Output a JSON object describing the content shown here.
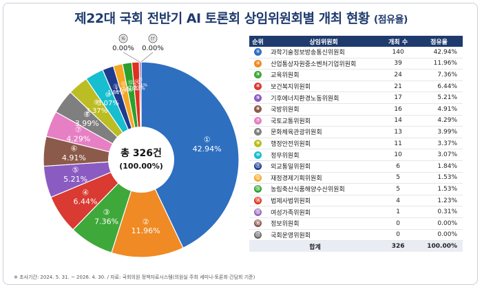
{
  "title_main": "제22대 국회 전반기 AI 토론회 상임위원회별 개최 현황",
  "title_sub": "(점유율)",
  "center_label": {
    "line1": "총 326건",
    "line2": "(100.00%)"
  },
  "table": {
    "headers": [
      "순위",
      "상임위원회",
      "개최 수",
      "점유율"
    ],
    "total": {
      "label": "합계",
      "count": "326",
      "pct": "100.00%"
    }
  },
  "footnote": "※ 조사기간: 2024. 5. 31. ~ 2026. 4. 30.   /   자료: 국회의원 정책자료시스템(의원실 주최 세미나·토론회·간담회 기준)",
  "chart_data": {
    "type": "pie",
    "title": "제22대 국회 전반기 AI 토론회 상임위원회별 개최 현황 (점유율)",
    "total": 326,
    "slices": [
      {
        "rank": "①",
        "name": "과학기술정보방송통신위원회",
        "count": 140,
        "pct": "42.94%",
        "color": "#2e6fc0"
      },
      {
        "rank": "②",
        "name": "산업통상자원중소벤처기업위원회",
        "count": 39,
        "pct": "11.96%",
        "color": "#f08a24"
      },
      {
        "rank": "③",
        "name": "교육위원회",
        "count": 24,
        "pct": "7.36%",
        "color": "#3fa83a"
      },
      {
        "rank": "④",
        "name": "보건복지위원회",
        "count": 21,
        "pct": "6.44%",
        "color": "#d93a32"
      },
      {
        "rank": "⑤",
        "name": "기후에너지환경노동위원회",
        "count": 17,
        "pct": "5.21%",
        "color": "#8a5cc2"
      },
      {
        "rank": "⑥",
        "name": "국방위원회",
        "count": 16,
        "pct": "4.91%",
        "color": "#8c5a4a"
      },
      {
        "rank": "⑦",
        "name": "국토교통위원회",
        "count": 14,
        "pct": "4.29%",
        "color": "#e77fc4"
      },
      {
        "rank": "⑧",
        "name": "문화체육관광위원회",
        "count": 13,
        "pct": "3.99%",
        "color": "#7f7f7f"
      },
      {
        "rank": "⑨",
        "name": "행정안전위원회",
        "count": 11,
        "pct": "3.37%",
        "color": "#bcbd22"
      },
      {
        "rank": "⑩",
        "name": "정무위원회",
        "count": 10,
        "pct": "3.07%",
        "color": "#17becf"
      },
      {
        "rank": "⑪",
        "name": "외교통일위원회",
        "count": 6,
        "pct": "1.84%",
        "color": "#1f3b8e"
      },
      {
        "rank": "⑫",
        "name": "재정경제기획위원회",
        "count": 5,
        "pct": "1.53%",
        "color": "#f5a623"
      },
      {
        "rank": "⑬",
        "name": "농림축산식품해양수산위원회",
        "count": 5,
        "pct": "1.53%",
        "color": "#2ca02c"
      },
      {
        "rank": "⑭",
        "name": "법제사법위원회",
        "count": 4,
        "pct": "1.23%",
        "color": "#e0301e"
      },
      {
        "rank": "⑮",
        "name": "여성가족위원회",
        "count": 1,
        "pct": "0.31%",
        "color": "#9467bd"
      },
      {
        "rank": "⑯",
        "name": "정보위원회",
        "count": 0,
        "pct": "0.00%",
        "color": "#8c564b"
      },
      {
        "rank": "⑰",
        "name": "국회운영위원회",
        "count": 0,
        "pct": "0.00%",
        "color": "#6b6b6b"
      }
    ]
  }
}
